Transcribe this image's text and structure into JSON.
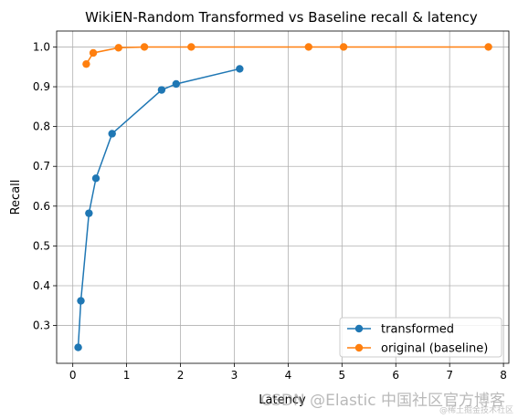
{
  "chart_data": {
    "type": "line",
    "title": "WikiEN-Random Transformed vs Baseline recall & latency",
    "xlabel": "Latency",
    "ylabel": "Recall",
    "xlim": [
      -0.3,
      8.1
    ],
    "ylim": [
      0.205,
      1.04
    ],
    "x_ticks": [
      0,
      1,
      2,
      3,
      4,
      5,
      6,
      7,
      8
    ],
    "y_ticks": [
      0.3,
      0.4,
      0.5,
      0.6,
      0.7,
      0.8,
      0.9,
      1.0
    ],
    "grid": true,
    "legend_position": "lower right",
    "series": [
      {
        "name": "transformed",
        "color": "#1f77b4",
        "x": [
          0.1,
          0.15,
          0.3,
          0.43,
          0.73,
          1.65,
          1.92,
          3.1
        ],
        "y": [
          0.245,
          0.362,
          0.582,
          0.67,
          0.782,
          0.892,
          0.907,
          0.945
        ]
      },
      {
        "name": "original (baseline)",
        "color": "#ff7f0e",
        "x": [
          0.25,
          0.38,
          0.85,
          1.33,
          2.2,
          4.38,
          5.03,
          7.72
        ],
        "y": [
          0.957,
          0.985,
          0.998,
          1.0,
          1.0,
          1.0,
          1.0,
          1.0
        ]
      }
    ]
  },
  "watermark": {
    "main": "CSDN @Elastic 中国社区官方博客",
    "sub": "@稀土掘金技术社区"
  }
}
